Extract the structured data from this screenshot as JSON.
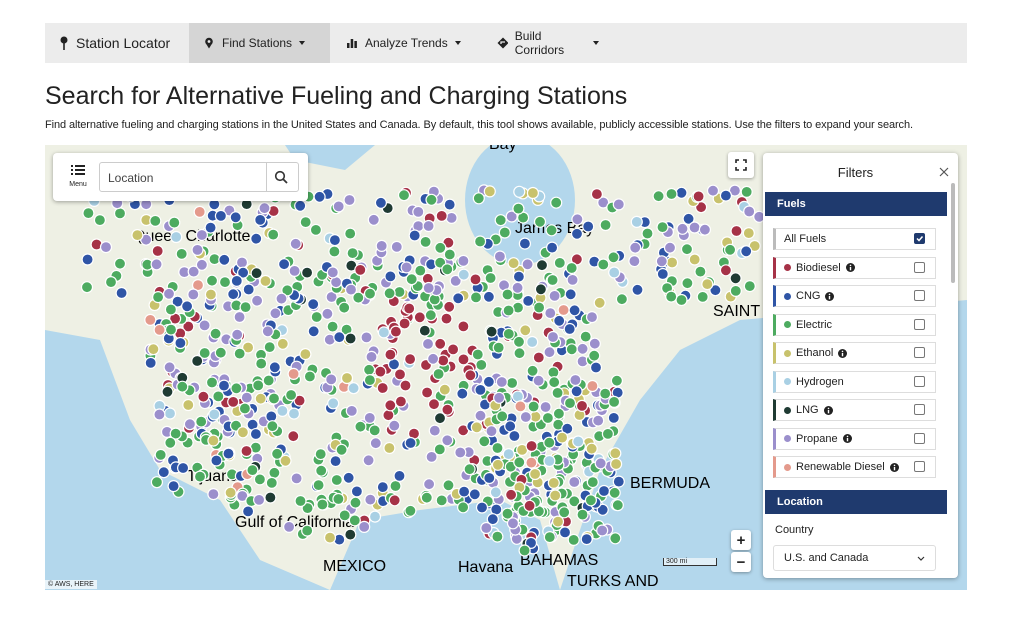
{
  "nav": {
    "brand": "Station Locator",
    "items": [
      "Find Stations",
      "Analyze Trends",
      "Build Corridors"
    ],
    "active": 0
  },
  "title": "Search for Alternative Fueling and Charging Stations",
  "description": "Find alternative fueling and charging stations in the United States and Canada. By default, this tool shows available, publicly accessible stations. Use the filters to expand your search.",
  "map": {
    "menu": "Menu",
    "search_placeholder": "Location",
    "labels": [
      "Bay",
      "James Bay",
      "Queen Charlotte",
      "Tijuana",
      "Gulf of California",
      "MEXICO",
      "Havana",
      "BAHAMAS",
      "TURKS AND",
      "BERMUDA",
      "SAINT PIERRE MIQUELON"
    ],
    "attribution": "© AWS, HERE",
    "scale": "300 mi",
    "zoom_in": "+",
    "zoom_out": "−"
  },
  "filters": {
    "title": "Filters",
    "fuels_heading": "Fuels",
    "fuels": [
      {
        "name": "All Fuels",
        "checked": true
      },
      {
        "name": "Biodiesel",
        "color": "#a63247",
        "info": true,
        "checked": false
      },
      {
        "name": "CNG",
        "color": "#2f55a6",
        "info": true,
        "checked": false
      },
      {
        "name": "Electric",
        "color": "#4dab60",
        "info": false,
        "checked": false
      },
      {
        "name": "Ethanol",
        "color": "#c8c26c",
        "info": true,
        "checked": false
      },
      {
        "name": "Hydrogen",
        "color": "#a9d0e4",
        "info": false,
        "checked": false
      },
      {
        "name": "LNG",
        "color": "#1f3b33",
        "info": true,
        "checked": false
      },
      {
        "name": "Propane",
        "color": "#9b8fcc",
        "info": true,
        "checked": false
      },
      {
        "name": "Renewable Diesel",
        "color": "#e49a8c",
        "info": true,
        "checked": false
      }
    ],
    "location_heading": "Location",
    "country_label": "Country",
    "country_value": "U.S. and Canada"
  }
}
